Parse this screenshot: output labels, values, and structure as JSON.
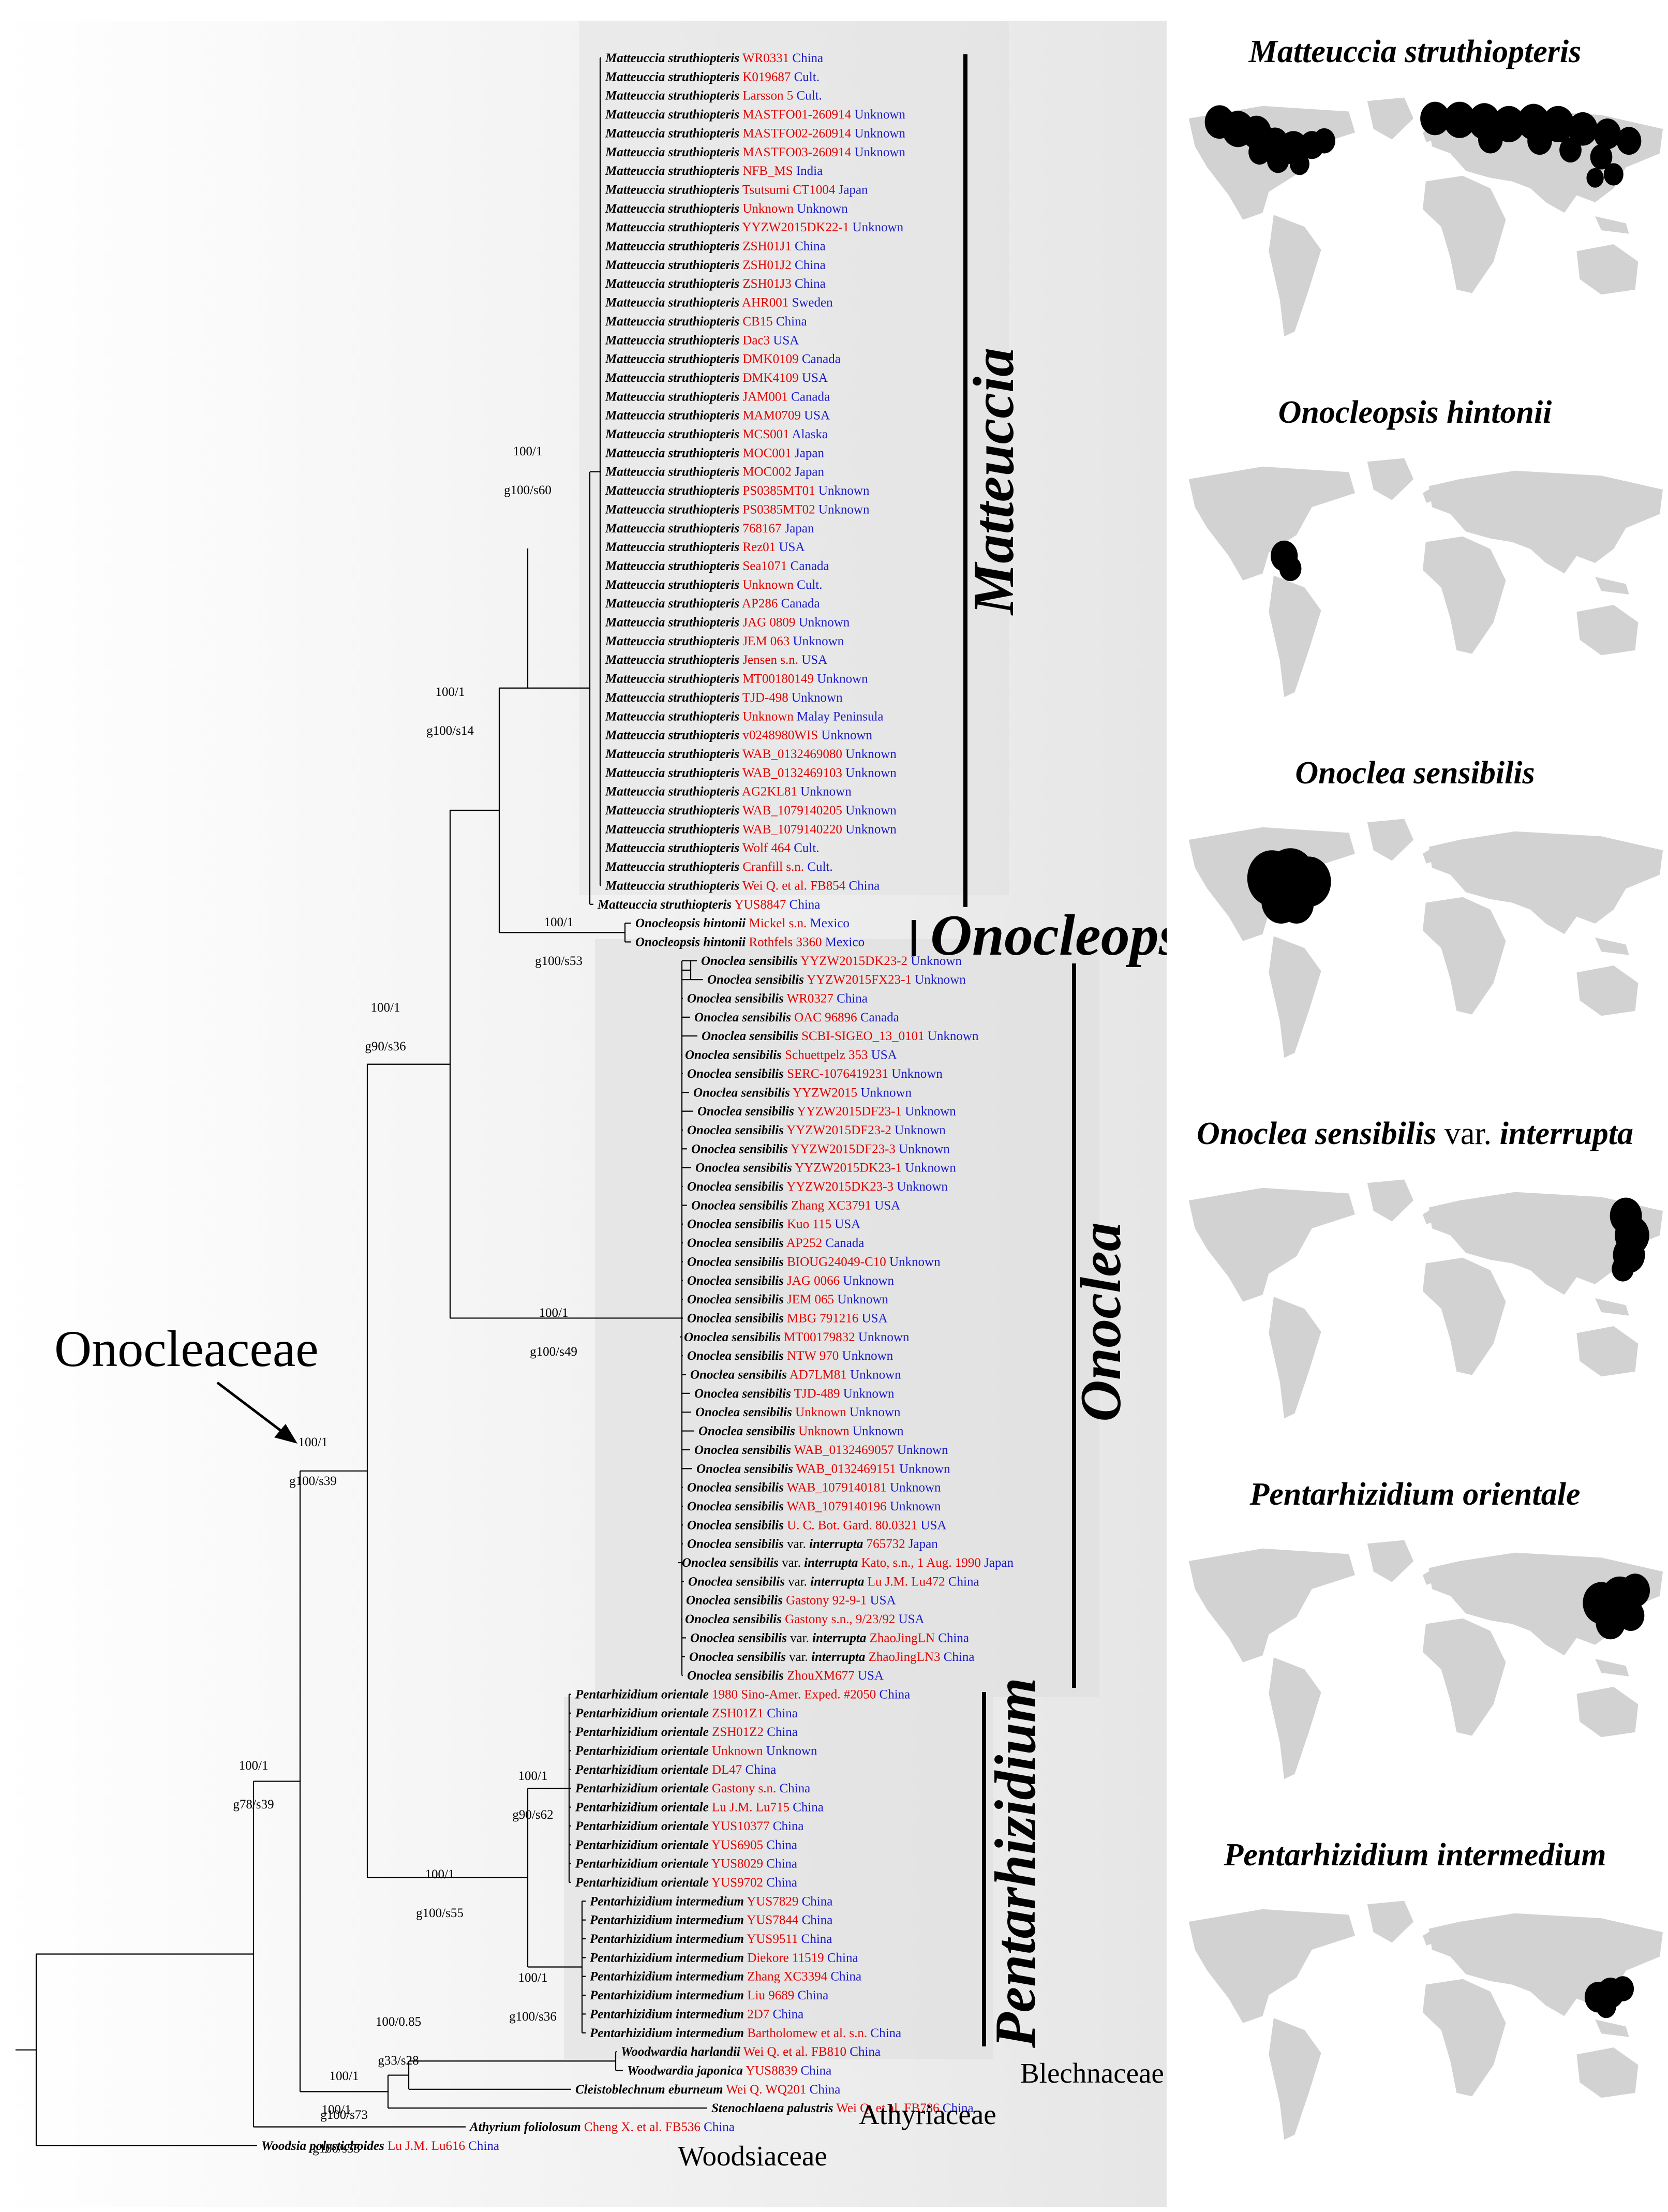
{
  "figure": {
    "family_label": "Onocleaceae",
    "colors": {
      "voucher": "#e00000",
      "locality": "#1a1ac8",
      "panel": "#e9e9e9"
    }
  },
  "clades": [
    {
      "name": "Matteuccia"
    },
    {
      "name": "Onocleopsis"
    },
    {
      "name": "Onoclea"
    },
    {
      "name": "Pentarhizidium"
    }
  ],
  "outgroup_labels": [
    "Blechnaceae",
    "Athyriaceae",
    "Woodsiaceae"
  ],
  "support_values": [
    {
      "top": "100/1",
      "bottom": "g100/s60"
    },
    {
      "top": "100/1",
      "bottom": "g100/s14"
    },
    {
      "top": "100/1",
      "bottom": "g100/s53"
    },
    {
      "top": "100/1",
      "bottom": "g90/s36"
    },
    {
      "top": "100/1",
      "bottom": "g100/s49"
    },
    {
      "top": "100/1",
      "bottom": "g100/s39"
    },
    {
      "top": "100/1",
      "bottom": "g78/s39"
    },
    {
      "top": "100/1",
      "bottom": "g90/s62"
    },
    {
      "top": "100/1",
      "bottom": "g100/s55"
    },
    {
      "top": "100/1",
      "bottom": "g100/s36"
    },
    {
      "top": "100/0.85",
      "bottom": "g33/s28"
    },
    {
      "top": "100/1",
      "bottom": "g100/s73"
    },
    {
      "top": "100/1",
      "bottom": "g100/s55"
    }
  ],
  "maps": [
    {
      "title_italic": "Matteuccia struthiopteris",
      "title_plain": "",
      "title_italic2": ""
    },
    {
      "title_italic": "Onocleopsis hintonii",
      "title_plain": "",
      "title_italic2": ""
    },
    {
      "title_italic": "Onoclea sensibilis",
      "title_plain": "",
      "title_italic2": ""
    },
    {
      "title_italic": "Onoclea sensibilis",
      "title_plain": " var. ",
      "title_italic2": "interrupta"
    },
    {
      "title_italic": "Pentarhizidium orientale",
      "title_plain": "",
      "title_italic2": ""
    },
    {
      "title_italic": "Pentarhizidium intermedium",
      "title_plain": "",
      "title_italic2": ""
    }
  ],
  "taxa": [
    {
      "species": "Matteuccia struthiopteris",
      "voucher": "WR0331",
      "locality": "China"
    },
    {
      "species": "Matteuccia struthiopteris",
      "voucher": "K019687",
      "locality": "Cult."
    },
    {
      "species": "Matteuccia struthiopteris",
      "voucher": "Larsson 5",
      "locality": "Cult."
    },
    {
      "species": "Matteuccia struthiopteris",
      "voucher": "MASTFO01-260914",
      "locality": "Unknown"
    },
    {
      "species": "Matteuccia struthiopteris",
      "voucher": "MASTFO02-260914",
      "locality": "Unknown"
    },
    {
      "species": "Matteuccia struthiopteris",
      "voucher": "MASTFO03-260914",
      "locality": "Unknown"
    },
    {
      "species": "Matteuccia struthiopteris",
      "voucher": "NFB_MS",
      "locality": "India"
    },
    {
      "species": "Matteuccia struthiopteris",
      "voucher": "Tsutsumi CT1004",
      "locality": "Japan"
    },
    {
      "species": "Matteuccia struthiopteris",
      "voucher": "Unknown",
      "locality": "Unknown"
    },
    {
      "species": "Matteuccia struthiopteris",
      "voucher": "YYZW2015DK22-1",
      "locality": "Unknown"
    },
    {
      "species": "Matteuccia struthiopteris",
      "voucher": "ZSH01J1",
      "locality": "China"
    },
    {
      "species": "Matteuccia struthiopteris",
      "voucher": "ZSH01J2",
      "locality": "China"
    },
    {
      "species": "Matteuccia struthiopteris",
      "voucher": "ZSH01J3",
      "locality": "China"
    },
    {
      "species": "Matteuccia struthiopteris",
      "voucher": "AHR001",
      "locality": "Sweden"
    },
    {
      "species": "Matteuccia struthiopteris",
      "voucher": "CB15",
      "locality": "China"
    },
    {
      "species": "Matteuccia struthiopteris",
      "voucher": "Dac3",
      "locality": "USA"
    },
    {
      "species": "Matteuccia struthiopteris",
      "voucher": "DMK0109",
      "locality": "Canada"
    },
    {
      "species": "Matteuccia struthiopteris",
      "voucher": "DMK4109",
      "locality": "USA"
    },
    {
      "species": "Matteuccia struthiopteris",
      "voucher": "JAM001",
      "locality": "Canada"
    },
    {
      "species": "Matteuccia struthiopteris",
      "voucher": "MAM0709",
      "locality": "USA"
    },
    {
      "species": "Matteuccia struthiopteris",
      "voucher": "MCS001",
      "locality": "Alaska"
    },
    {
      "species": "Matteuccia struthiopteris",
      "voucher": "MOC001",
      "locality": "Japan"
    },
    {
      "species": "Matteuccia struthiopteris",
      "voucher": "MOC002",
      "locality": "Japan"
    },
    {
      "species": "Matteuccia struthiopteris",
      "voucher": "PS0385MT01",
      "locality": "Unknown"
    },
    {
      "species": "Matteuccia struthiopteris",
      "voucher": "PS0385MT02",
      "locality": "Unknown"
    },
    {
      "species": "Matteuccia struthiopteris",
      "voucher": "768167",
      "locality": "Japan"
    },
    {
      "species": "Matteuccia struthiopteris",
      "voucher": "Rez01",
      "locality": "USA"
    },
    {
      "species": "Matteuccia struthiopteris",
      "voucher": "Sea1071",
      "locality": "Canada"
    },
    {
      "species": "Matteuccia struthiopteris",
      "voucher": "Unknown",
      "locality": "Cult."
    },
    {
      "species": "Matteuccia struthiopteris",
      "voucher": "AP286",
      "locality": "Canada"
    },
    {
      "species": "Matteuccia struthiopteris",
      "voucher": "JAG 0809",
      "locality": "Unknown"
    },
    {
      "species": "Matteuccia struthiopteris",
      "voucher": "JEM 063",
      "locality": "Unknown"
    },
    {
      "species": "Matteuccia struthiopteris",
      "voucher": "Jensen s.n.",
      "locality": "USA"
    },
    {
      "species": "Matteuccia struthiopteris",
      "voucher": "MT00180149",
      "locality": "Unknown"
    },
    {
      "species": "Matteuccia struthiopteris",
      "voucher": "TJD-498",
      "locality": "Unknown"
    },
    {
      "species": "Matteuccia struthiopteris",
      "voucher": "Unknown",
      "locality": "Malay Peninsula"
    },
    {
      "species": "Matteuccia struthiopteris",
      "voucher": "v0248980WIS",
      "locality": "Unknown"
    },
    {
      "species": "Matteuccia struthiopteris",
      "voucher": "WAB_0132469080",
      "locality": "Unknown"
    },
    {
      "species": "Matteuccia struthiopteris",
      "voucher": "WAB_0132469103",
      "locality": "Unknown"
    },
    {
      "species": "Matteuccia struthiopteris",
      "voucher": "AG2KL81",
      "locality": "Unknown"
    },
    {
      "species": "Matteuccia struthiopteris",
      "voucher": "WAB_1079140205",
      "locality": "Unknown"
    },
    {
      "species": "Matteuccia struthiopteris",
      "voucher": "WAB_1079140220",
      "locality": "Unknown"
    },
    {
      "species": "Matteuccia struthiopteris",
      "voucher": "Wolf 464",
      "locality": "Cult."
    },
    {
      "species": "Matteuccia struthiopteris",
      "voucher": "Cranfill s.n.",
      "locality": "Cult."
    },
    {
      "species": "Matteuccia struthiopteris",
      "voucher": "Wei Q. et al. FB854",
      "locality": "China"
    },
    {
      "species": "Matteuccia struthiopteris",
      "voucher": "YUS8847",
      "locality": "China"
    },
    {
      "species": "Onocleopsis hintonii",
      "voucher": "Mickel s.n.",
      "locality": "Mexico"
    },
    {
      "species": "Onocleopsis hintonii",
      "voucher": "Rothfels 3360",
      "locality": "Mexico"
    },
    {
      "species": "Onoclea sensibilis",
      "voucher": "YYZW2015DK23-2",
      "locality": "Unknown"
    },
    {
      "species": "Onoclea sensibilis",
      "voucher": "YYZW2015FX23-1",
      "locality": "Unknown"
    },
    {
      "species": "Onoclea sensibilis",
      "voucher": "WR0327",
      "locality": "China"
    },
    {
      "species": "Onoclea sensibilis",
      "voucher": "OAC 96896",
      "locality": "Canada"
    },
    {
      "species": "Onoclea sensibilis",
      "voucher": "SCBI-SIGEO_13_0101",
      "locality": "Unknown"
    },
    {
      "species": "Onoclea sensibilis",
      "voucher": "Schuettpelz 353",
      "locality": "USA"
    },
    {
      "species": "Onoclea sensibilis",
      "voucher": "SERC-1076419231",
      "locality": "Unknown"
    },
    {
      "species": "Onoclea sensibilis",
      "voucher": "YYZW2015",
      "locality": "Unknown"
    },
    {
      "species": "Onoclea sensibilis",
      "voucher": "YYZW2015DF23-1",
      "locality": "Unknown"
    },
    {
      "species": "Onoclea sensibilis",
      "voucher": "YYZW2015DF23-2",
      "locality": "Unknown"
    },
    {
      "species": "Onoclea sensibilis",
      "voucher": "YYZW2015DF23-3",
      "locality": "Unknown"
    },
    {
      "species": "Onoclea sensibilis",
      "voucher": "YYZW2015DK23-1",
      "locality": "Unknown"
    },
    {
      "species": "Onoclea sensibilis",
      "voucher": "YYZW2015DK23-3",
      "locality": "Unknown"
    },
    {
      "species": "Onoclea sensibilis",
      "voucher": "Zhang XC3791",
      "locality": "USA"
    },
    {
      "species": "Onoclea sensibilis",
      "voucher": "Kuo 115",
      "locality": "USA"
    },
    {
      "species": "Onoclea sensibilis",
      "voucher": "AP252",
      "locality": "Canada"
    },
    {
      "species": "Onoclea sensibilis",
      "voucher": "BIOUG24049-C10",
      "locality": "Unknown"
    },
    {
      "species": "Onoclea sensibilis",
      "voucher": "JAG 0066",
      "locality": "Unknown"
    },
    {
      "species": "Onoclea sensibilis",
      "voucher": "JEM 065",
      "locality": "Unknown"
    },
    {
      "species": "Onoclea sensibilis",
      "voucher": "MBG 791216",
      "locality": "USA"
    },
    {
      "species": "Onoclea sensibilis",
      "voucher": "MT00179832",
      "locality": "Unknown"
    },
    {
      "species": "Onoclea sensibilis",
      "voucher": "NTW 970",
      "locality": "Unknown"
    },
    {
      "species": "Onoclea sensibilis",
      "voucher": "AD7LM81",
      "locality": "Unknown"
    },
    {
      "species": "Onoclea sensibilis",
      "voucher": "TJD-489",
      "locality": "Unknown"
    },
    {
      "species": "Onoclea sensibilis",
      "voucher": "Unknown",
      "locality": "Unknown"
    },
    {
      "species": "Onoclea sensibilis",
      "voucher": "Unknown",
      "locality": "Unknown"
    },
    {
      "species": "Onoclea sensibilis",
      "voucher": "WAB_0132469057",
      "locality": "Unknown"
    },
    {
      "species": "Onoclea sensibilis",
      "voucher": "WAB_0132469151",
      "locality": "Unknown"
    },
    {
      "species": "Onoclea sensibilis",
      "voucher": "WAB_1079140181",
      "locality": "Unknown"
    },
    {
      "species": "Onoclea sensibilis",
      "voucher": "WAB_1079140196",
      "locality": "Unknown"
    },
    {
      "species": "Onoclea sensibilis",
      "voucher": "U. C. Bot. Gard. 80.0321",
      "locality": "USA"
    },
    {
      "species": "Onoclea sensibilis",
      "var": "interrupta",
      "voucher": "765732",
      "locality": "Japan"
    },
    {
      "species": "Onoclea sensibilis",
      "var": "interrupta",
      "voucher": "Kato, s.n., 1 Aug. 1990",
      "locality": "Japan"
    },
    {
      "species": "Onoclea sensibilis",
      "var": "interrupta",
      "voucher": "Lu J.M. Lu472",
      "locality": "China"
    },
    {
      "species": "Onoclea sensibilis",
      "voucher": "Gastony 92-9-1",
      "locality": "USA"
    },
    {
      "species": "Onoclea sensibilis",
      "voucher": "Gastony s.n., 9/23/92",
      "locality": "USA"
    },
    {
      "species": "Onoclea sensibilis",
      "var": "interrupta",
      "voucher": "ZhaoJingLN",
      "locality": "China"
    },
    {
      "species": "Onoclea sensibilis",
      "var": "interrupta",
      "voucher": "ZhaoJingLN3",
      "locality": "China"
    },
    {
      "species": "Onoclea sensibilis",
      "voucher": "ZhouXM677",
      "locality": "USA"
    },
    {
      "species": "Pentarhizidium orientale",
      "voucher": "1980 Sino-Amer. Exped. #2050",
      "locality": "China"
    },
    {
      "species": "Pentarhizidium orientale",
      "voucher": "ZSH01Z1",
      "locality": "China"
    },
    {
      "species": "Pentarhizidium orientale",
      "voucher": "ZSH01Z2",
      "locality": "China"
    },
    {
      "species": "Pentarhizidium orientale",
      "voucher": "Unknown",
      "locality": "Unknown"
    },
    {
      "species": "Pentarhizidium orientale",
      "voucher": "DL47",
      "locality": "China"
    },
    {
      "species": "Pentarhizidium orientale",
      "voucher": "Gastony s.n.",
      "locality": "China"
    },
    {
      "species": "Pentarhizidium orientale",
      "voucher": "Lu J.M. Lu715",
      "locality": "China"
    },
    {
      "species": "Pentarhizidium orientale",
      "voucher": "YUS10377",
      "locality": "China"
    },
    {
      "species": "Pentarhizidium orientale",
      "voucher": "YUS6905",
      "locality": "China"
    },
    {
      "species": "Pentarhizidium orientale",
      "voucher": "YUS8029",
      "locality": "China"
    },
    {
      "species": "Pentarhizidium orientale",
      "voucher": "YUS9702",
      "locality": "China"
    },
    {
      "species": "Pentarhizidium intermedium",
      "voucher": "YUS7829",
      "locality": "China"
    },
    {
      "species": "Pentarhizidium intermedium",
      "voucher": "YUS7844",
      "locality": "China"
    },
    {
      "species": "Pentarhizidium intermedium",
      "voucher": "YUS9511",
      "locality": "China"
    },
    {
      "species": "Pentarhizidium intermedium",
      "voucher": "Diekore 11519",
      "locality": "China"
    },
    {
      "species": "Pentarhizidium intermedium",
      "voucher": "Zhang XC3394",
      "locality": "China"
    },
    {
      "species": "Pentarhizidium intermedium",
      "voucher": "Liu 9689",
      "locality": "China"
    },
    {
      "species": "Pentarhizidium intermedium",
      "voucher": "2D7",
      "locality": "China"
    },
    {
      "species": "Pentarhizidium intermedium",
      "voucher": "Bartholomew et al. s.n.",
      "locality": "China"
    },
    {
      "species": "Woodwardia harlandii",
      "voucher": "Wei Q. et al. FB810",
      "locality": "China"
    },
    {
      "species": "Woodwardia japonica",
      "voucher": "YUS8839",
      "locality": "China"
    },
    {
      "species": "Cleistoblechnum eburneum",
      "voucher": "Wei Q. WQ201",
      "locality": "China"
    },
    {
      "species": "Stenochlaena palustris",
      "voucher": "Wei Q. et al. FB786",
      "locality": "China"
    },
    {
      "species": "Athyrium foliolosum",
      "voucher": "Cheng X. et al. FB536",
      "locality": "China"
    },
    {
      "species": "Woodsia polystichoides",
      "voucher": "Lu J.M. Lu616",
      "locality": "China"
    }
  ]
}
